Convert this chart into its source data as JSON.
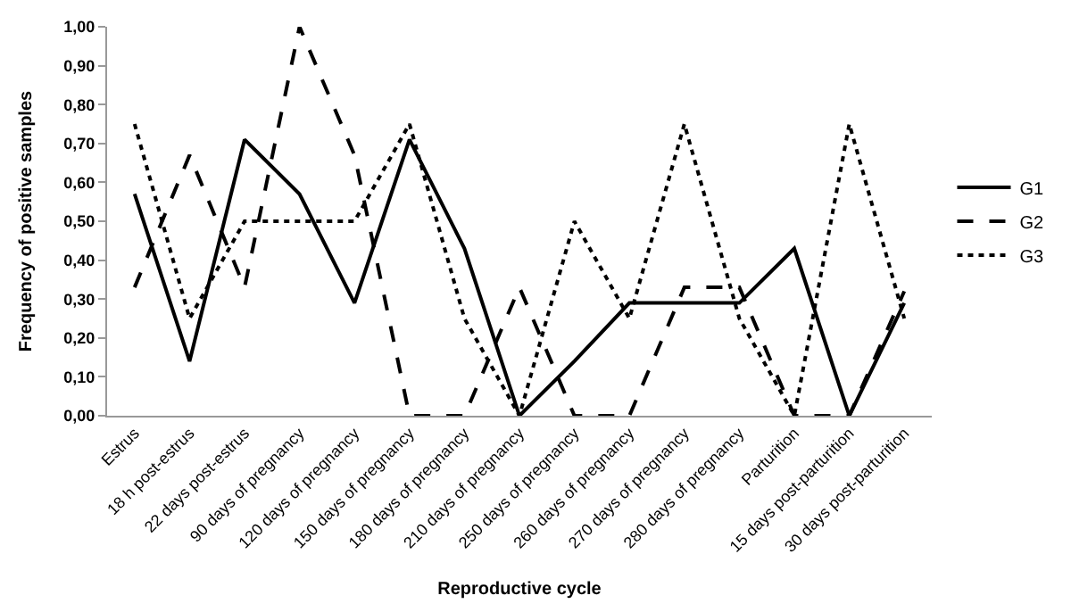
{
  "chart_data": {
    "type": "line",
    "xlabel": "Reproductive cycle",
    "ylabel": "Frequency of positive samples",
    "categories": [
      "Estrus",
      "18 h post-estrus",
      "22 days post-estrus",
      "90 days of pregnancy",
      "120 days of pregnancy",
      "150 days of pregnancy",
      "180 days of pregnancy",
      "210 days of pregnancy",
      "250 days of pregnancy",
      "260 days of pregnancy",
      "270 days of pregnancy",
      "280 days of pregnancy",
      "Parturition",
      "15 days post-parturition",
      "30 days post-parturition"
    ],
    "series": [
      {
        "name": "G1",
        "color": "#000000",
        "line_style": "solid",
        "values": [
          0.57,
          0.14,
          0.71,
          0.57,
          0.29,
          0.71,
          0.43,
          0,
          0.14,
          0.29,
          0.29,
          0.29,
          0.43,
          0,
          0.29
        ]
      },
      {
        "name": "G2",
        "color": "#000000",
        "line_style": "dashed",
        "values": [
          0.33,
          0.67,
          0.33,
          1.0,
          0.67,
          0,
          0,
          0.33,
          0,
          0,
          0.33,
          0.33,
          0,
          0,
          0.32
        ]
      },
      {
        "name": "G3",
        "color": "#000000",
        "line_style": "dotted",
        "values": [
          0.75,
          0.25,
          0.5,
          0.5,
          0.5,
          0.75,
          0.25,
          0,
          0.5,
          0.25,
          0.75,
          0.25,
          0,
          0.75,
          0.25
        ]
      }
    ],
    "ylim": [
      0,
      1
    ],
    "yticks": [
      {
        "value": 0,
        "label": "0,00"
      },
      {
        "value": 0.1,
        "label": "0,10"
      },
      {
        "value": 0.2,
        "label": "0,20"
      },
      {
        "value": 0.3,
        "label": "0,30"
      },
      {
        "value": 0.4,
        "label": "0,40"
      },
      {
        "value": 0.5,
        "label": "0,50"
      },
      {
        "value": 0.6,
        "label": "0,60"
      },
      {
        "value": 0.7,
        "label": "0,70"
      },
      {
        "value": 0.8,
        "label": "0,80"
      },
      {
        "value": 0.9,
        "label": "0,90"
      },
      {
        "value": 1.0,
        "label": "1,00"
      }
    ],
    "legend": "right",
    "marker": "none"
  }
}
